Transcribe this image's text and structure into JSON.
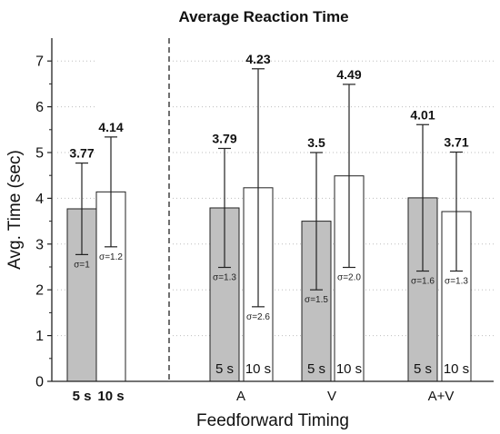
{
  "chart_data": {
    "type": "bar",
    "title": "Average Reaction Time",
    "xlabel": "Feedforward Timing",
    "ylabel": "Avg. Time (sec)",
    "ylim": [
      0,
      7.5
    ],
    "yticks": [
      0,
      1,
      2,
      3,
      4,
      5,
      6,
      7
    ],
    "grid": "dotted horizontal",
    "colors": {
      "5 s": "#c0c0c0",
      "10 s": "#ffffff",
      "stroke": "#222222"
    },
    "groups": [
      {
        "label": "",
        "bars": [
          {
            "timing": "5 s",
            "value": 3.77,
            "value_label": "3.77",
            "err_low": 2.77,
            "err_high": 4.77,
            "sigma": "σ=1",
            "xlabel": "5 s"
          },
          {
            "timing": "10 s",
            "value": 4.14,
            "value_label": "4.14",
            "err_low": 2.94,
            "err_high": 5.34,
            "sigma": "σ=1.2",
            "xlabel": "10 s"
          }
        ]
      },
      {
        "label": "A",
        "bars": [
          {
            "timing": "5 s",
            "value": 3.79,
            "value_label": "3.79",
            "err_low": 2.49,
            "err_high": 5.09,
            "sigma": "σ=1.3",
            "inbar": "5 s"
          },
          {
            "timing": "10 s",
            "value": 4.23,
            "value_label": "4.23",
            "err_low": 1.63,
            "err_high": 6.83,
            "sigma": "σ=2.6",
            "inbar": "10 s"
          }
        ]
      },
      {
        "label": "V",
        "bars": [
          {
            "timing": "5 s",
            "value": 3.5,
            "value_label": "3.5",
            "err_low": 2.0,
            "err_high": 5.0,
            "sigma": "σ=1.5",
            "inbar": "5 s"
          },
          {
            "timing": "10 s",
            "value": 4.49,
            "value_label": "4.49",
            "err_low": 2.49,
            "err_high": 6.49,
            "sigma": "σ=2.0",
            "inbar": "10 s"
          }
        ]
      },
      {
        "label": "A+V",
        "bars": [
          {
            "timing": "5 s",
            "value": 4.01,
            "value_label": "4.01",
            "err_low": 2.41,
            "err_high": 5.61,
            "sigma": "σ=1.6",
            "inbar": "5 s"
          },
          {
            "timing": "10 s",
            "value": 3.71,
            "value_label": "3.71",
            "err_low": 2.41,
            "err_high": 5.01,
            "sigma": "σ=1.3",
            "inbar": "10 s"
          }
        ]
      }
    ]
  }
}
